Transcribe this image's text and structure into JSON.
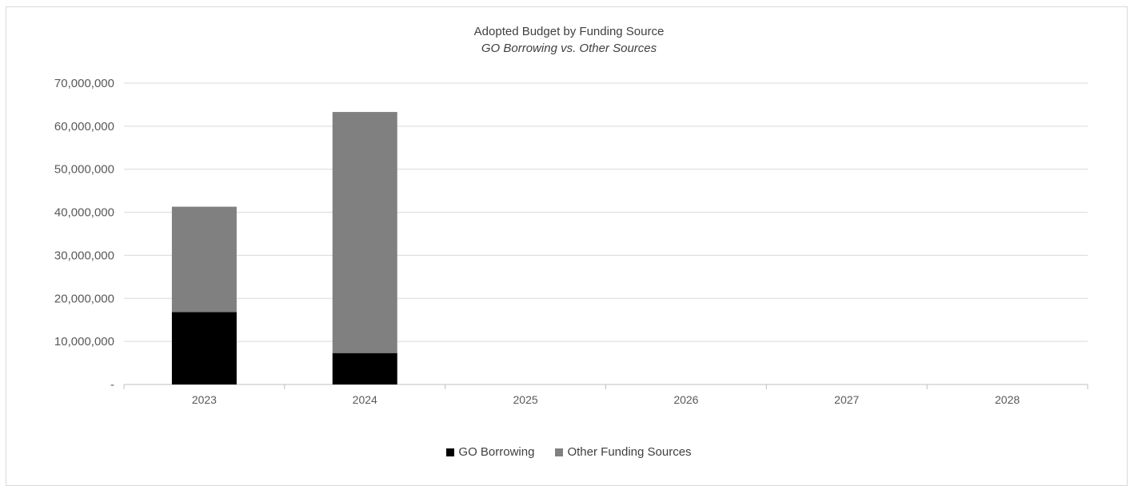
{
  "chart_data": {
    "type": "bar",
    "stacked": true,
    "title": "Adopted Budget by Funding Source",
    "subtitle": "GO Borrowing vs. Other Sources",
    "xlabel": "",
    "ylabel": "",
    "categories": [
      "2023",
      "2024",
      "2025",
      "2026",
      "2027",
      "2028"
    ],
    "series": [
      {
        "name": "GO Borrowing",
        "color": "#000000",
        "values": [
          16800000,
          7300000,
          0,
          0,
          0,
          0
        ]
      },
      {
        "name": "Other Funding Sources",
        "color": "#808080",
        "values": [
          24500000,
          56000000,
          0,
          0,
          0,
          0
        ]
      }
    ],
    "ylim": [
      0,
      70000000
    ],
    "yticks": [
      0,
      10000000,
      20000000,
      30000000,
      40000000,
      50000000,
      60000000,
      70000000
    ],
    "ytick_labels": [
      "-",
      "10,000,000",
      "20,000,000",
      "30,000,000",
      "40,000,000",
      "50,000,000",
      "60,000,000",
      "70,000,000"
    ],
    "grid": true,
    "legend_position": "bottom"
  }
}
